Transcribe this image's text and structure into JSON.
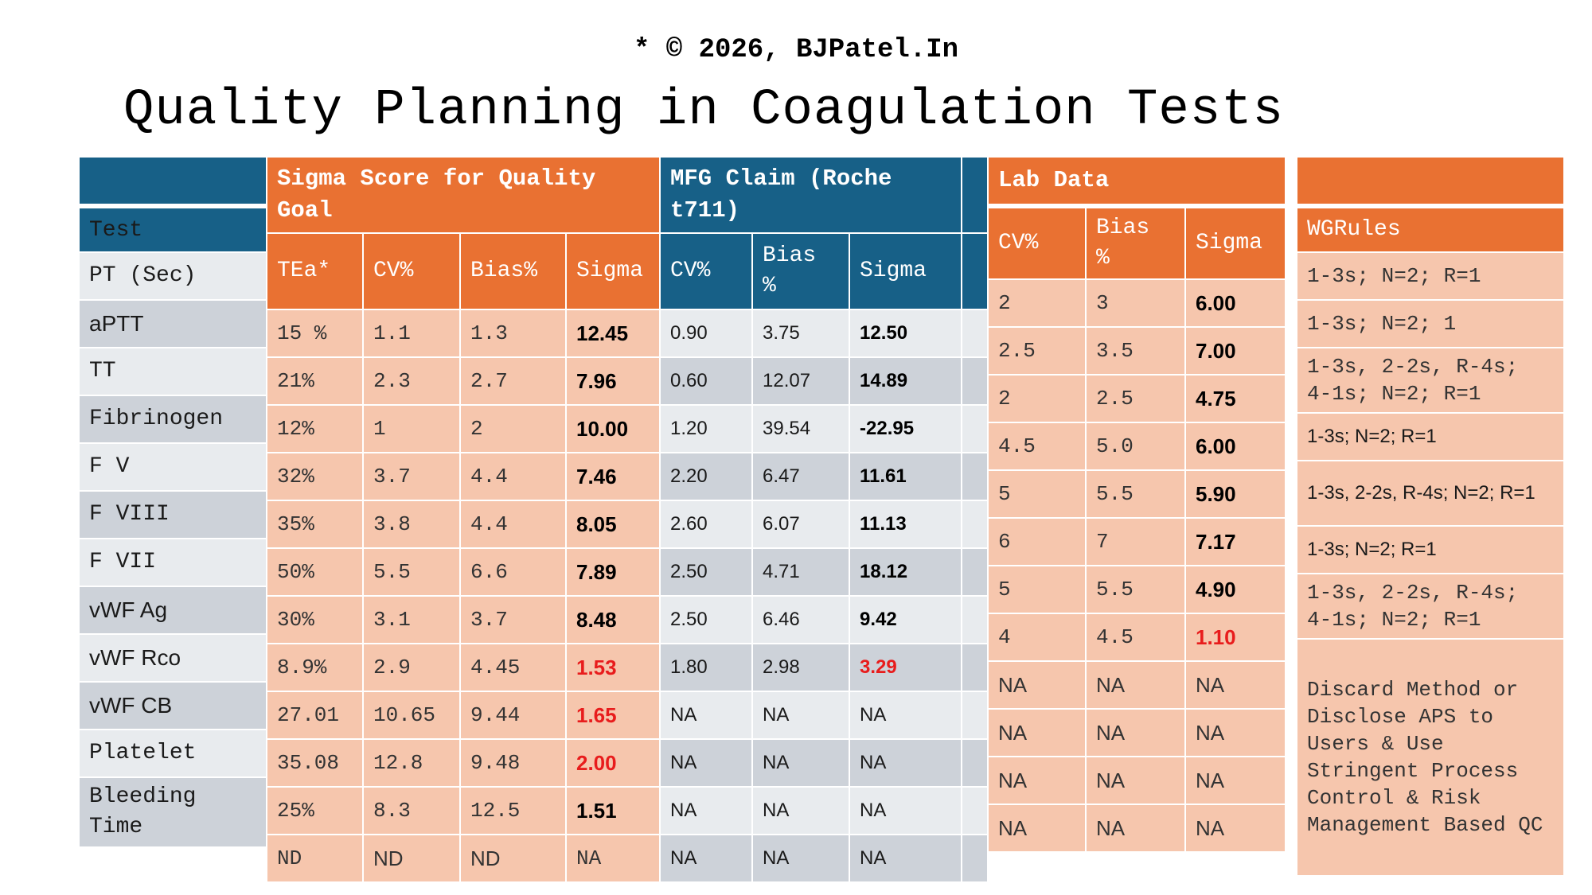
{
  "copyright": "* © 2026, BJPatel.In",
  "title": "Quality Planning in Coagulation Tests",
  "colors": {
    "blue": "#176087",
    "orange": "#e97132",
    "peach": "#f6c6ad",
    "grey_light": "#e8ebee",
    "grey_dark": "#cdd2d9",
    "red": "#e81c1c"
  },
  "test_column": {
    "header": "Test",
    "items": [
      {
        "label": "PT (Sec)",
        "font": "mono"
      },
      {
        "label": "aPTT",
        "font": "sans"
      },
      {
        "label": "TT",
        "font": "mono"
      },
      {
        "label": "Fibrinogen",
        "font": "mono"
      },
      {
        "label": "F V",
        "font": "mono"
      },
      {
        "label": "F VIII",
        "font": "mono"
      },
      {
        "label": "F VII",
        "font": "mono"
      },
      {
        "label": "vWF Ag",
        "font": "sans"
      },
      {
        "label": "vWF Rco",
        "font": "sans"
      },
      {
        "label": "vWF CB",
        "font": "sans"
      },
      {
        "label": "Platelet",
        "font": "mono"
      },
      {
        "label": "Bleeding Time",
        "font": "mono"
      }
    ]
  },
  "sigma_goal": {
    "header": "Sigma Score for Quality Goal",
    "columns": [
      "TEa*",
      "CV%",
      "Bias%",
      "Sigma"
    ],
    "rows": [
      {
        "tea": "15 %",
        "cv": "1.1",
        "bias": "1.3",
        "sigma": "12.45",
        "flag": false
      },
      {
        "tea": "21%",
        "cv": "2.3",
        "bias": "2.7",
        "sigma": "7.96",
        "flag": false
      },
      {
        "tea": "12%",
        "cv": "1",
        "bias": "2",
        "sigma": "10.00",
        "flag": false
      },
      {
        "tea": "32%",
        "cv": "3.7",
        "bias": "4.4",
        "sigma": "7.46",
        "flag": false
      },
      {
        "tea": "35%",
        "cv": "3.8",
        "bias": "4.4",
        "sigma": "8.05",
        "flag": false
      },
      {
        "tea": "50%",
        "cv": "5.5",
        "bias": "6.6",
        "sigma": "7.89",
        "flag": false
      },
      {
        "tea": "30%",
        "cv": "3.1",
        "bias": "3.7",
        "sigma": "8.48",
        "flag": false
      },
      {
        "tea": "8.9%",
        "cv": "2.9",
        "bias": "4.45",
        "sigma": "1.53",
        "flag": true
      },
      {
        "tea": "27.01",
        "cv": "10.65",
        "bias": "9.44",
        "sigma": "1.65",
        "flag": true
      },
      {
        "tea": "35.08",
        "cv": "12.8",
        "bias": "9.48",
        "sigma": "2.00",
        "flag": true
      },
      {
        "tea": "25%",
        "cv": "8.3",
        "bias": "12.5",
        "sigma": "1.51",
        "flag": false
      },
      {
        "tea": "ND",
        "cv": "ND",
        "bias": "ND",
        "sigma": "NA",
        "flag": false
      }
    ]
  },
  "mfg_claim": {
    "header": "MFG Claim (Roche t711)",
    "columns": [
      "CV%",
      "Bias %",
      "Sigma"
    ],
    "rows": [
      {
        "cv": "0.90",
        "bias": "3.75",
        "sigma": "12.50",
        "flag": false
      },
      {
        "cv": "0.60",
        "bias": "12.07",
        "sigma": "14.89",
        "flag": false
      },
      {
        "cv": "1.20",
        "bias": "39.54",
        "sigma": "-22.95",
        "flag": false
      },
      {
        "cv": "2.20",
        "bias": "6.47",
        "sigma": "11.61",
        "flag": false
      },
      {
        "cv": "2.60",
        "bias": "6.07",
        "sigma": "11.13",
        "flag": false
      },
      {
        "cv": "2.50",
        "bias": "4.71",
        "sigma": "18.12",
        "flag": false
      },
      {
        "cv": "2.50",
        "bias": "6.46",
        "sigma": "9.42",
        "flag": false
      },
      {
        "cv": "1.80",
        "bias": "2.98",
        "sigma": "3.29",
        "flag": true
      },
      {
        "cv": "NA",
        "bias": "NA",
        "sigma": "NA",
        "flag": false
      },
      {
        "cv": "NA",
        "bias": "NA",
        "sigma": "NA",
        "flag": false
      },
      {
        "cv": "NA",
        "bias": "NA",
        "sigma": "NA",
        "flag": false
      },
      {
        "cv": "NA",
        "bias": "NA",
        "sigma": "NA",
        "flag": false
      }
    ]
  },
  "lab_data": {
    "header": "Lab Data",
    "columns": [
      "CV%",
      "Bias %",
      "Sigma"
    ],
    "rows": [
      {
        "cv": "2",
        "bias": "3",
        "sigma": "6.00",
        "flag": false
      },
      {
        "cv": "2.5",
        "bias": "3.5",
        "sigma": "7.00",
        "flag": false
      },
      {
        "cv": "2",
        "bias": "2.5",
        "sigma": "4.75",
        "flag": false
      },
      {
        "cv": "4.5",
        "bias": "5.0",
        "sigma": "6.00",
        "flag": false
      },
      {
        "cv": "5",
        "bias": "5.5",
        "sigma": "5.90",
        "flag": false
      },
      {
        "cv": "6",
        "bias": "7",
        "sigma": "7.17",
        "flag": false
      },
      {
        "cv": "5",
        "bias": "5.5",
        "sigma": "4.90",
        "flag": false
      },
      {
        "cv": "4",
        "bias": "4.5",
        "sigma": "1.10",
        "flag": true
      },
      {
        "cv": "NA",
        "bias": "NA",
        "sigma": "NA",
        "flag": false
      },
      {
        "cv": "NA",
        "bias": "NA",
        "sigma": "NA",
        "flag": false
      },
      {
        "cv": "NA",
        "bias": "NA",
        "sigma": "NA",
        "flag": false
      },
      {
        "cv": "NA",
        "bias": "NA",
        "sigma": "NA",
        "flag": false
      }
    ]
  },
  "wg_rules": {
    "header": "WGRules",
    "rows": [
      {
        "text": "1-3s; N=2; R=1",
        "font": "mono"
      },
      {
        "text": "1-3s; N=2; 1",
        "font": "mono"
      },
      {
        "text": "1-3s, 2-2s, R-4s; 4-1s; N=2; R=1",
        "font": "mono"
      },
      {
        "text": "1-3s; N=2; R=1",
        "font": "sans"
      },
      {
        "text": "1-3s, 2-2s, R-4s; N=2; R=1",
        "font": "sans"
      },
      {
        "text": "1-3s; N=2; R=1",
        "font": "sans"
      },
      {
        "text": "1-3s, 2-2s, R-4s; 4-1s; N=2; R=1",
        "font": "mono"
      },
      {
        "text": "Discard Method or Disclose APS to Users & Use Stringent Process Control & Risk Management Based QC",
        "font": "mono"
      }
    ]
  }
}
